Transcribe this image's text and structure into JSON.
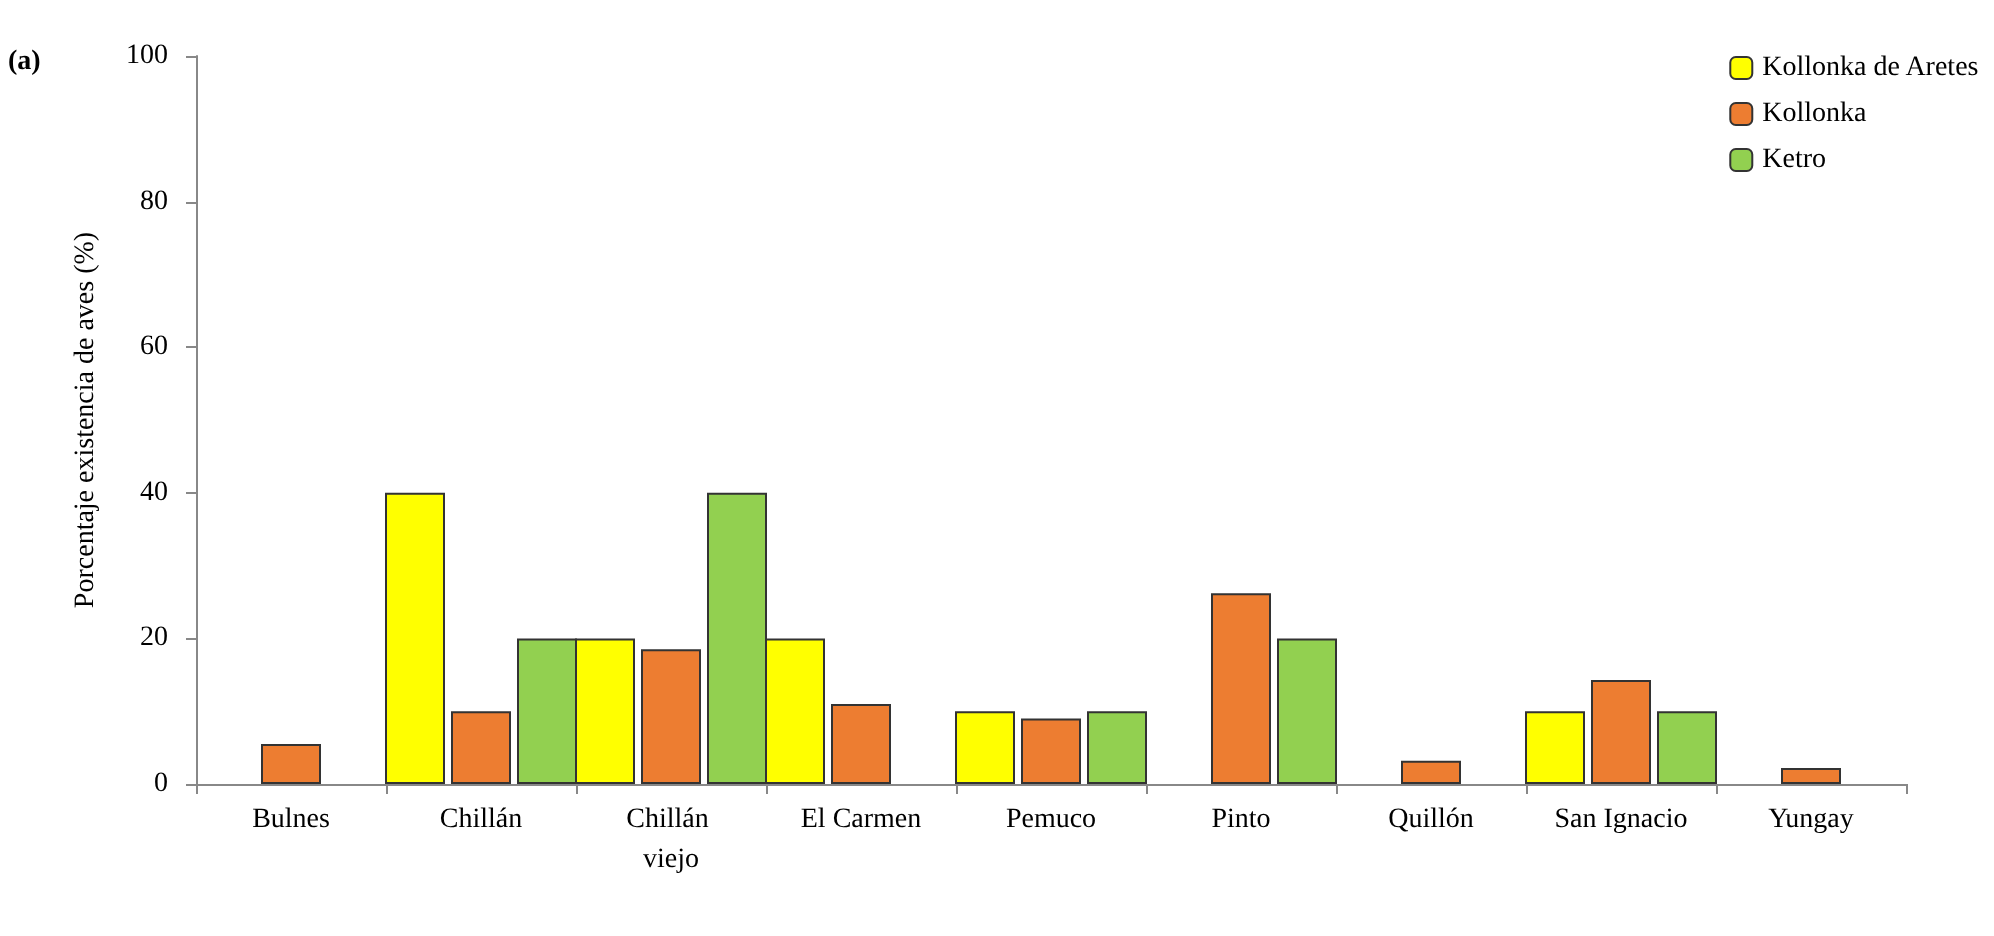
{
  "chart_data": {
    "type": "bar",
    "ylabel": "Porcentaje existencia de aves (%)",
    "annotations": [
      "(a)"
    ],
    "categories": [
      "Bulnes",
      "Chillán",
      "Chillán viejo",
      "El Carmen",
      "Pemuco",
      "Pinto",
      "Quillón",
      "San Ignacio",
      "Yungay"
    ],
    "series": [
      {
        "name": "Kollonka de Aretes",
        "color": "#ffff00",
        "values": [
          null,
          40,
          20,
          20,
          10,
          null,
          null,
          10,
          null
        ]
      },
      {
        "name": "Kollonka",
        "color": "#ed7d31",
        "values": [
          5.5,
          10,
          18.5,
          11,
          9,
          26.2,
          3.2,
          14.3,
          2.2
        ]
      },
      {
        "name": "Ketro",
        "color": "#92d050",
        "values": [
          null,
          20,
          40,
          null,
          10,
          20,
          null,
          10,
          null
        ]
      }
    ],
    "ylim": [
      0,
      100
    ],
    "yticks": [
      0,
      20,
      40,
      60,
      80,
      100
    ],
    "grid": false,
    "legend": "top right"
  }
}
